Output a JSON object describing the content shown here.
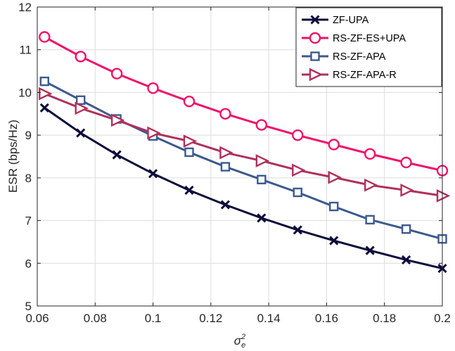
{
  "chart_data": {
    "type": "line",
    "xlabel": "σ_e^2",
    "ylabel": "ESR (bps/Hz)",
    "xlim": [
      0.06,
      0.2
    ],
    "ylim": [
      5,
      12
    ],
    "x_ticks": [
      0.06,
      0.08,
      0.1,
      0.12,
      0.14,
      0.16,
      0.18,
      0.2
    ],
    "x_tick_labels": [
      "0.06",
      "0.08",
      "0.1",
      "0.12",
      "0.14",
      "0.16",
      "0.18",
      "0.2"
    ],
    "y_ticks": [
      5,
      6,
      7,
      8,
      9,
      10,
      11,
      12
    ],
    "y_tick_labels": [
      "5",
      "6",
      "7",
      "8",
      "9",
      "10",
      "11",
      "12"
    ],
    "grid": true,
    "legend_position": "top-right",
    "x": [
      0.0625,
      0.075,
      0.0875,
      0.1,
      0.1125,
      0.125,
      0.1375,
      0.15,
      0.1625,
      0.175,
      0.1875,
      0.2
    ],
    "series": [
      {
        "name": "ZF-UPA",
        "color": "#0b0b3b",
        "marker": "x",
        "values": [
          9.64,
          9.05,
          8.54,
          8.1,
          7.71,
          7.37,
          7.06,
          6.78,
          6.53,
          6.3,
          6.08,
          5.88
        ]
      },
      {
        "name": "RS-ZF-ES+UPA",
        "color": "#f0106a",
        "marker": "circle",
        "values": [
          11.3,
          10.84,
          10.44,
          10.1,
          9.79,
          9.5,
          9.24,
          9.0,
          8.78,
          8.56,
          8.36,
          8.17
        ]
      },
      {
        "name": "RS-ZF-APA",
        "color": "#3c5a8e",
        "marker": "square",
        "values": [
          10.26,
          9.82,
          9.38,
          8.98,
          8.6,
          8.26,
          7.96,
          7.66,
          7.33,
          7.02,
          6.8,
          6.57
        ]
      },
      {
        "name": "RS-ZF-APA-R",
        "color": "#b0305a",
        "marker": "triangle-right",
        "values": [
          9.97,
          9.63,
          9.35,
          9.05,
          8.86,
          8.59,
          8.4,
          8.18,
          8.01,
          7.83,
          7.71,
          7.58
        ]
      }
    ]
  }
}
